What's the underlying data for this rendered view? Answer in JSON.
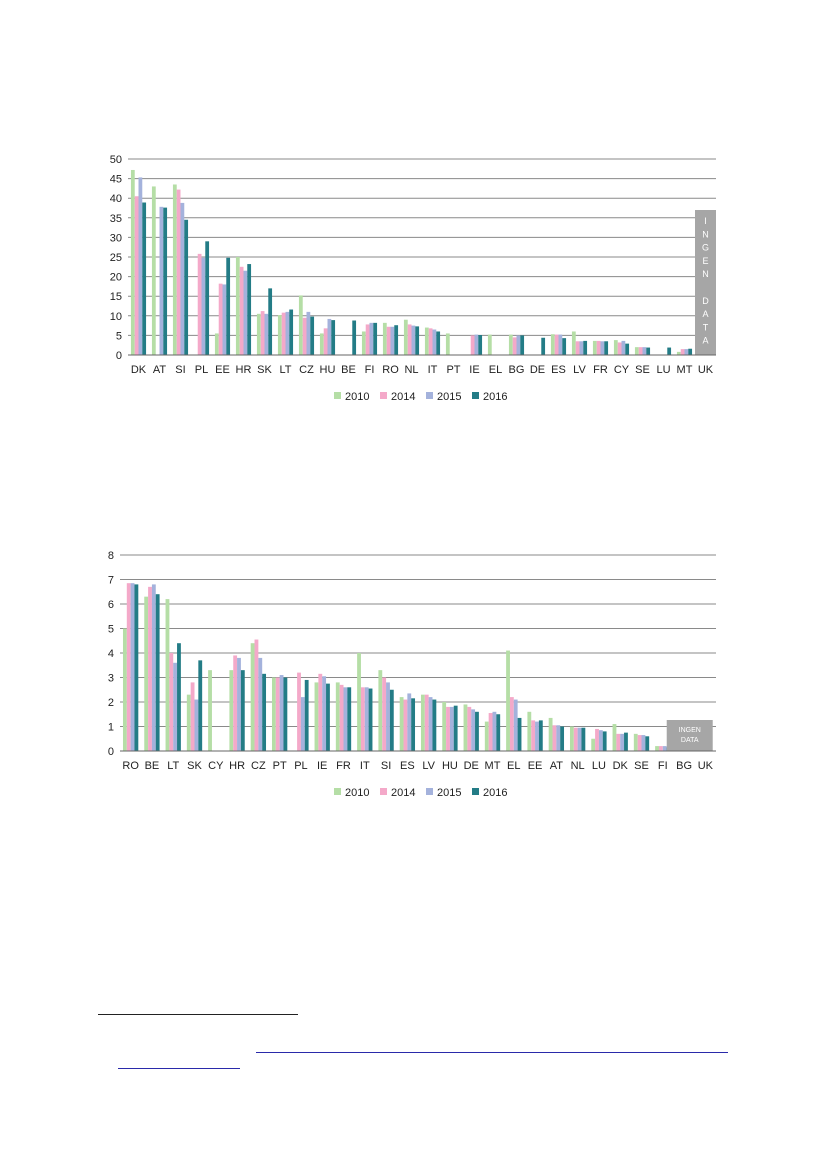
{
  "colors": {
    "series": [
      "#b5dea6",
      "#f4a9c9",
      "#a4b2dc",
      "#237c86"
    ],
    "grid": "#8a8a8a",
    "nodata_box": "#a6a6a6"
  },
  "chart_data": [
    {
      "type": "bar",
      "title": "",
      "xlabel": "",
      "ylabel": "",
      "ylim": [
        0,
        50
      ],
      "yticks": [
        0,
        5,
        10,
        15,
        20,
        25,
        30,
        35,
        40,
        45,
        50
      ],
      "grid": true,
      "legend": "bottom",
      "categories": [
        "DK",
        "AT",
        "SI",
        "PL",
        "EE",
        "HR",
        "SK",
        "LT",
        "CZ",
        "HU",
        "BE",
        "FI",
        "RO",
        "NL",
        "IT",
        "PT",
        "IE",
        "EL",
        "BG",
        "DE",
        "ES",
        "LV",
        "FR",
        "CY",
        "SE",
        "LU",
        "MT",
        "UK"
      ],
      "series": [
        {
          "name": "2010",
          "values": [
            47.2,
            43,
            43.5,
            null,
            5.5,
            25,
            10.5,
            10.2,
            15.2,
            5.5,
            null,
            6,
            8.2,
            9,
            7,
            5.5,
            null,
            5.2,
            5.2,
            null,
            5.3,
            6,
            3.6,
            3.8,
            2,
            null,
            0.8,
            null
          ]
        },
        {
          "name": "2014",
          "values": [
            40.5,
            0,
            42.2,
            25.8,
            18.2,
            22.5,
            11.2,
            10.8,
            9.5,
            6.8,
            null,
            7.8,
            7.2,
            7.8,
            6.8,
            null,
            5,
            null,
            4.5,
            null,
            5.2,
            3.5,
            3.6,
            3.2,
            2,
            null,
            1.5,
            null
          ]
        },
        {
          "name": "2015",
          "values": [
            45.3,
            37.8,
            38.8,
            24.8,
            18,
            21.5,
            10.5,
            11,
            11,
            9.2,
            null,
            8.2,
            7.2,
            7.5,
            6.5,
            null,
            5.2,
            null,
            5,
            null,
            5.2,
            3.5,
            3.5,
            3.6,
            2,
            null,
            1.5,
            null
          ]
        },
        {
          "name": "2016",
          "values": [
            38.9,
            37.6,
            34.5,
            29,
            24.8,
            23.2,
            17,
            11.6,
            9.8,
            8.9,
            8.8,
            8.2,
            7.6,
            7.3,
            6,
            null,
            5.1,
            null,
            5,
            4.4,
            4.3,
            3.6,
            3.5,
            2.9,
            1.9,
            1.9,
            1.6,
            null
          ]
        }
      ],
      "nodata_label": "INGEN DATA"
    },
    {
      "type": "bar",
      "title": "",
      "xlabel": "",
      "ylabel": "",
      "ylim": [
        0,
        8
      ],
      "yticks": [
        0,
        1,
        2,
        3,
        4,
        5,
        6,
        7,
        8
      ],
      "grid": true,
      "legend": "bottom",
      "categories": [
        "RO",
        "BE",
        "LT",
        "SK",
        "CY",
        "HR",
        "CZ",
        "PT",
        "PL",
        "IE",
        "FR",
        "IT",
        "SI",
        "ES",
        "LV",
        "HU",
        "DE",
        "MT",
        "EL",
        "EE",
        "AT",
        "NL",
        "LU",
        "DK",
        "SE",
        "FI",
        "BG",
        "UK"
      ],
      "series": [
        {
          "name": "2010",
          "values": [
            5,
            6.3,
            6.2,
            2.3,
            3.3,
            3.3,
            4.4,
            3,
            0,
            2.8,
            2.8,
            4,
            3.3,
            2.2,
            2.3,
            2,
            1.9,
            1.2,
            4.1,
            1.6,
            1.35,
            1,
            0.5,
            1.1,
            0.7,
            0.2,
            null,
            null
          ]
        },
        {
          "name": "2014",
          "values": [
            6.85,
            6.7,
            4.0,
            2.8,
            null,
            3.9,
            4.55,
            3,
            3.2,
            3.15,
            2.7,
            2.6,
            3,
            2.1,
            2.3,
            1.8,
            1.8,
            1.55,
            2.2,
            1.25,
            1.05,
            0.95,
            0.9,
            0.7,
            0.65,
            0.2,
            null,
            null
          ]
        },
        {
          "name": "2015",
          "values": [
            6.85,
            6.8,
            3.6,
            2.1,
            null,
            3.8,
            3.8,
            3.1,
            2.2,
            3.05,
            2.6,
            2.6,
            2.8,
            2.35,
            2.2,
            1.8,
            1.7,
            1.6,
            2.1,
            1.2,
            1.05,
            0.95,
            0.85,
            0.7,
            0.65,
            0.2,
            null,
            null
          ]
        },
        {
          "name": "2016",
          "values": [
            6.8,
            6.4,
            4.4,
            3.7,
            null,
            3.3,
            3.15,
            3,
            2.9,
            2.75,
            2.6,
            2.55,
            2.5,
            2.15,
            2.1,
            1.85,
            1.6,
            1.5,
            1.35,
            1.25,
            1,
            0.95,
            0.8,
            0.75,
            0.6,
            0.15,
            null,
            null
          ]
        }
      ],
      "nodata_label": "INGEN DATA"
    }
  ]
}
